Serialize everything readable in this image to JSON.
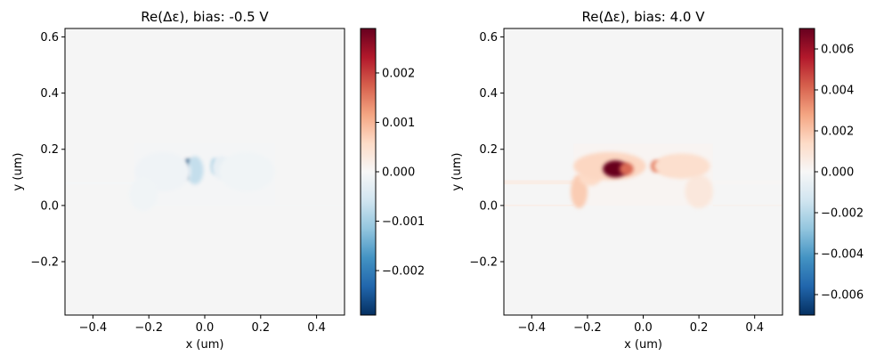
{
  "chart_data": [
    {
      "type": "heatmap",
      "title": "Re(Δε), bias: -0.5 V",
      "xlabel": "x (um)",
      "ylabel": "y (um)",
      "xlim": [
        -0.5,
        0.5
      ],
      "ylim": [
        -0.39,
        0.63
      ],
      "xticks": [
        -0.4,
        -0.2,
        0.0,
        0.2,
        0.4
      ],
      "xtick_labels": [
        "−0.4",
        "−0.2",
        "0.0",
        "0.2",
        "0.4"
      ],
      "yticks": [
        -0.2,
        0.0,
        0.2,
        0.4,
        0.6
      ],
      "ytick_labels": [
        "−0.2",
        "0.0",
        "0.2",
        "0.4",
        "0.6"
      ],
      "colormap": "RdBu_r",
      "background_color": "#f5f5f5",
      "clim": [
        -0.0029,
        0.0029
      ],
      "colorbar_ticks": [
        -0.002,
        -0.001,
        0.0,
        0.001,
        0.002
      ],
      "colorbar_tick_labels": [
        "−0.002",
        "−0.001",
        "0.000",
        "0.001",
        "0.002"
      ],
      "features": [
        {
          "shape": "rect",
          "x": [
            -0.25,
            0.25
          ],
          "y": [
            0.0,
            0.22
          ],
          "value": -5e-05
        },
        {
          "shape": "rect",
          "x": [
            -0.5,
            -0.25
          ],
          "y": [
            0.075,
            0.085
          ],
          "value": -4e-05
        },
        {
          "shape": "rect",
          "x": [
            -0.25,
            0.5
          ],
          "y": [
            -0.002,
            0.002
          ],
          "value": -4e-05
        },
        {
          "shape": "blob",
          "cx": -0.06,
          "cy": 0.13,
          "rx": 0.018,
          "ry": 0.035,
          "value": -0.0029
        },
        {
          "shape": "blob",
          "cx": -0.035,
          "cy": 0.125,
          "rx": 0.03,
          "ry": 0.05,
          "value": -0.0007
        },
        {
          "shape": "blob",
          "cx": 0.035,
          "cy": 0.14,
          "rx": 0.012,
          "ry": 0.028,
          "value": -0.0011
        },
        {
          "shape": "blob",
          "cx": 0.06,
          "cy": 0.135,
          "rx": 0.035,
          "ry": 0.04,
          "value": -0.00025
        },
        {
          "shape": "blob",
          "cx": -0.15,
          "cy": 0.12,
          "rx": 0.1,
          "ry": 0.07,
          "value": -0.00012
        },
        {
          "shape": "blob",
          "cx": 0.15,
          "cy": 0.12,
          "rx": 0.1,
          "ry": 0.07,
          "value": -0.0001
        },
        {
          "shape": "blob",
          "cx": -0.22,
          "cy": 0.04,
          "rx": 0.05,
          "ry": 0.06,
          "value": -0.0001
        }
      ]
    },
    {
      "type": "heatmap",
      "title": "Re(Δε), bias: 4.0 V",
      "xlabel": "x (um)",
      "ylabel": "y (um)",
      "xlim": [
        -0.5,
        0.5
      ],
      "ylim": [
        -0.39,
        0.63
      ],
      "xticks": [
        -0.4,
        -0.2,
        0.0,
        0.2,
        0.4
      ],
      "xtick_labels": [
        "−0.4",
        "−0.2",
        "0.0",
        "0.2",
        "0.4"
      ],
      "yticks": [
        -0.2,
        0.0,
        0.2,
        0.4,
        0.6
      ],
      "ytick_labels": [
        "−0.2",
        "0.0",
        "0.2",
        "0.4",
        "0.6"
      ],
      "colormap": "RdBu_r",
      "background_color": "#f5f5f5",
      "clim": [
        -0.007,
        0.007
      ],
      "colorbar_ticks": [
        -0.006,
        -0.004,
        -0.002,
        0.0,
        0.002,
        0.004,
        0.006
      ],
      "colorbar_tick_labels": [
        "−0.006",
        "−0.004",
        "−0.002",
        "0.000",
        "0.002",
        "0.004",
        "0.006"
      ],
      "features": [
        {
          "shape": "rect",
          "x": [
            -0.25,
            0.25
          ],
          "y": [
            0.0,
            0.22
          ],
          "value": 0.00015
        },
        {
          "shape": "rect",
          "x": [
            -0.5,
            -0.25
          ],
          "y": [
            0.075,
            0.09
          ],
          "value": 0.0005
        },
        {
          "shape": "rect",
          "x": [
            0.25,
            0.5
          ],
          "y": [
            0.075,
            0.09
          ],
          "value": 0.0001
        },
        {
          "shape": "rect",
          "x": [
            -0.5,
            -0.25
          ],
          "y": [
            -0.002,
            0.003
          ],
          "value": 0.0005
        },
        {
          "shape": "rect",
          "x": [
            0.25,
            0.5
          ],
          "y": [
            -0.002,
            0.003
          ],
          "value": 0.0003
        },
        {
          "shape": "blob",
          "cx": -0.23,
          "cy": 0.05,
          "rx": 0.03,
          "ry": 0.06,
          "value": 0.0018
        },
        {
          "shape": "blob",
          "cx": -0.19,
          "cy": 0.1,
          "rx": 0.04,
          "ry": 0.03,
          "value": 0.0014
        },
        {
          "shape": "blob",
          "cx": 0.2,
          "cy": 0.05,
          "rx": 0.05,
          "ry": 0.06,
          "value": 0.0008
        },
        {
          "shape": "blob",
          "cx": -0.12,
          "cy": 0.14,
          "rx": 0.13,
          "ry": 0.05,
          "value": 0.0015
        },
        {
          "shape": "blob",
          "cx": 0.14,
          "cy": 0.14,
          "rx": 0.1,
          "ry": 0.045,
          "value": 0.0012
        },
        {
          "shape": "blob",
          "cx": -0.1,
          "cy": 0.13,
          "rx": 0.045,
          "ry": 0.03,
          "value": 0.007
        },
        {
          "shape": "blob",
          "cx": -0.06,
          "cy": 0.13,
          "rx": 0.025,
          "ry": 0.022,
          "value": 0.004
        },
        {
          "shape": "blob",
          "cx": 0.045,
          "cy": 0.14,
          "rx": 0.018,
          "ry": 0.022,
          "value": 0.0035
        },
        {
          "shape": "blob",
          "cx": 0.09,
          "cy": 0.14,
          "rx": 0.05,
          "ry": 0.03,
          "value": 0.0012
        }
      ]
    }
  ]
}
